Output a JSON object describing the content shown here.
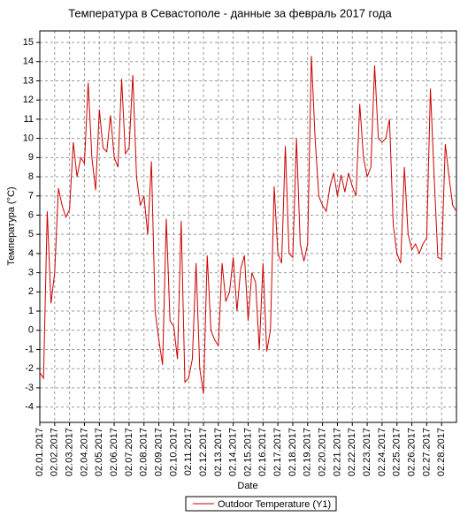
{
  "chart_data": {
    "type": "line",
    "title": "Температура в Севастополе - данные за февраль 2017 года",
    "xlabel": "Date",
    "ylabel": "Температура (°C)",
    "categories": [
      "02.01.2017",
      null,
      null,
      null,
      "02.02.2017",
      null,
      null,
      null,
      "02.03.2017",
      null,
      null,
      null,
      "02.04.2017",
      null,
      null,
      null,
      "02.05.2017",
      null,
      null,
      null,
      "02.06.2017",
      null,
      null,
      null,
      "02.07.2017",
      null,
      null,
      null,
      "02.08.2017",
      null,
      null,
      null,
      "02.09.2017",
      null,
      null,
      null,
      "02.10.2017",
      null,
      null,
      null,
      "02.11.2017",
      null,
      null,
      null,
      "02.12.2017",
      null,
      null,
      null,
      "02.13.2017",
      null,
      null,
      null,
      "02.14.2017",
      null,
      null,
      null,
      "02.15.2017",
      null,
      null,
      null,
      "02.16.2017",
      null,
      null,
      null,
      "02.17.2017",
      null,
      null,
      null,
      "02.18.2017",
      null,
      null,
      null,
      "02.19.2017",
      null,
      null,
      null,
      "02.20.2017",
      null,
      null,
      null,
      "02.21.2017",
      null,
      null,
      null,
      "02.22.2017",
      null,
      null,
      null,
      "02.23.2017",
      null,
      null,
      null,
      "02.24.2017",
      null,
      null,
      null,
      "02.25.2017",
      null,
      null,
      null,
      "02.26.2017",
      null,
      null,
      null,
      "02.27.2017",
      null,
      null,
      null,
      "02.28.2017",
      null,
      null,
      null,
      null
    ],
    "series": [
      {
        "name": "Outdoor Temperature (Y1)",
        "color": "#cc0000",
        "values": [
          -2.2,
          -2.5,
          6.2,
          1.4,
          3,
          7.4,
          6.5,
          5.9,
          6.3,
          9.8,
          8,
          9,
          8.7,
          12.9,
          9,
          7.3,
          11.5,
          9.5,
          9.3,
          11.2,
          9,
          8.5,
          13.1,
          9.2,
          9.5,
          13.3,
          8,
          6.5,
          7,
          5,
          8.8,
          1,
          -0.5,
          -1.8,
          5.8,
          0.5,
          0.2,
          -1.5,
          5.7,
          -2.7,
          -2.5,
          -1.5,
          3.5,
          -2,
          -3.3,
          3.9,
          0,
          -0.5,
          -0.8,
          3.5,
          1.5,
          2,
          3.8,
          1,
          3.2,
          3.9,
          0.5,
          3,
          2.5,
          -1,
          3.5,
          -1.1,
          0,
          7.5,
          4,
          3.5,
          9.6,
          4,
          3.8,
          10,
          4.5,
          3.6,
          4.5,
          14.3,
          10,
          7,
          6.5,
          6.2,
          7.5,
          8.2,
          7,
          8.1,
          7.2,
          8.2,
          7.5,
          7,
          11.8,
          9,
          8,
          8.5,
          13.8,
          10,
          9.8,
          10,
          11,
          5.5,
          4,
          3.5,
          8.5,
          5,
          4.2,
          4.5,
          4,
          4.5,
          4.8,
          12.6,
          8,
          3.8,
          3.7,
          9.7,
          8,
          6.5,
          6.2
        ]
      }
    ],
    "ylim": [
      -4.8,
      15.6
    ],
    "yticks": [
      -4,
      -3,
      -2,
      -1,
      0,
      1,
      2,
      3,
      4,
      5,
      6,
      7,
      8,
      9,
      10,
      11,
      12,
      13,
      14,
      15
    ],
    "grid": true
  }
}
